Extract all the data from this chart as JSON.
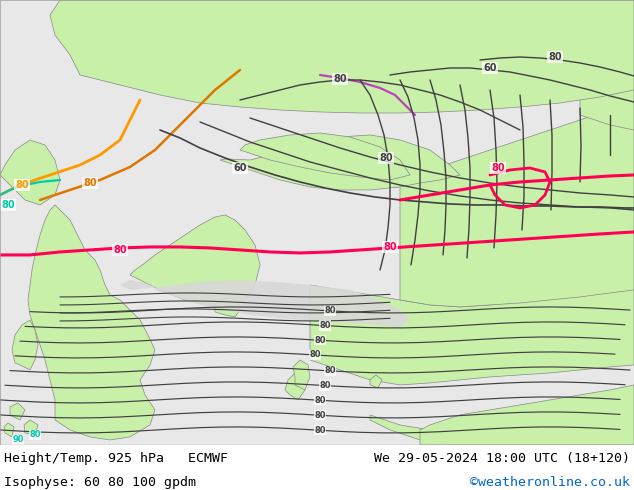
{
  "title_left": "Height/Temp. 925 hPa   ECMWF",
  "title_right": "We 29-05-2024 18:00 UTC (18+120)",
  "subtitle_left": "Isophyse: 60 80 100 gpdm",
  "subtitle_right": "©weatheronline.co.uk",
  "subtitle_right_color": "#0066cc",
  "bg_color": "#ffffff",
  "land_green": "#c8f0a8",
  "land_outline": "#888888",
  "sea_color": "#e8e8e8",
  "footer_text_color": "#000000",
  "fig_width": 6.34,
  "fig_height": 4.9,
  "dpi": 100,
  "contour_black": "#404040",
  "contour_red": "#ff0055",
  "contour_orange": "#ff9900",
  "contour_orange2": "#cc6600",
  "contour_cyan": "#00ccaa",
  "contour_magenta": "#cc44cc",
  "contour_lw_black": 1.0,
  "contour_lw_colored": 1.6
}
